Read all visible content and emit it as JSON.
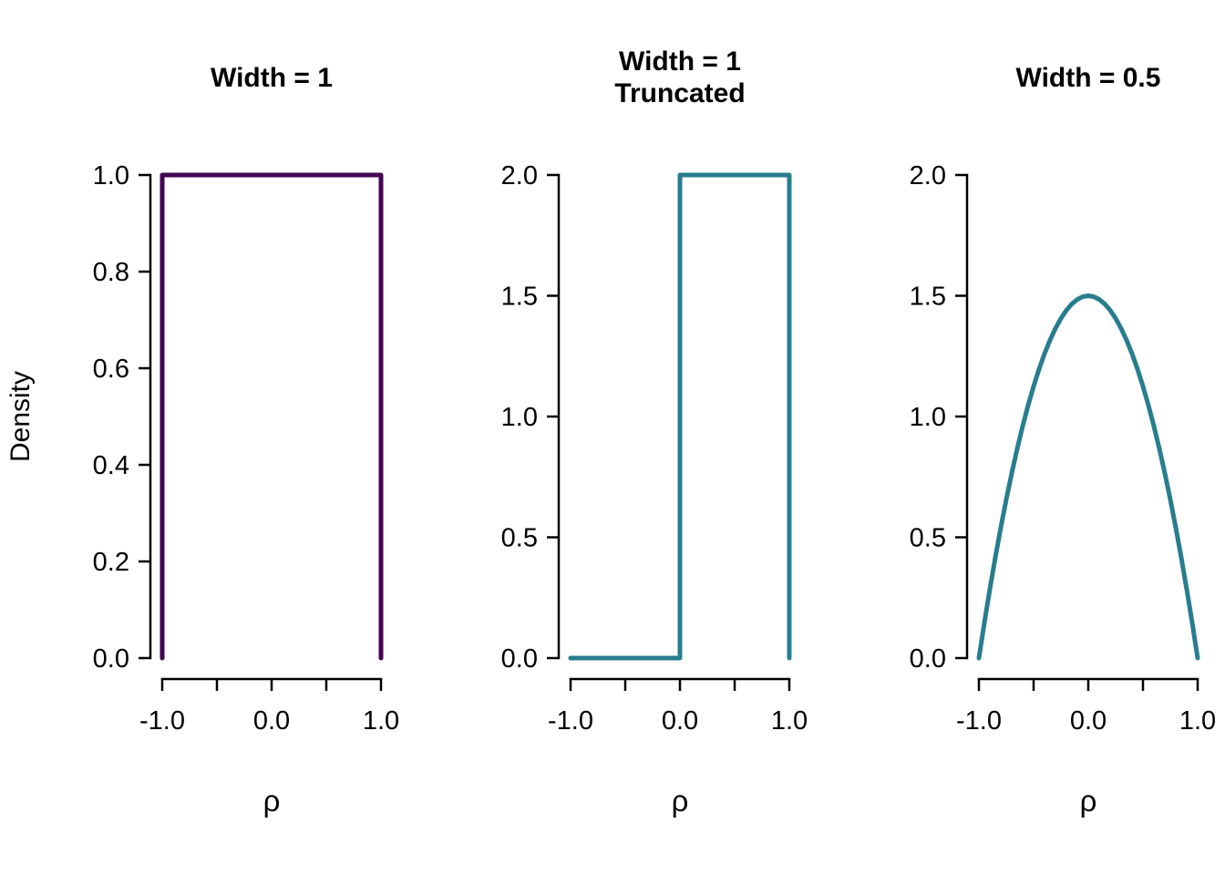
{
  "page": {
    "background": "#ffffff",
    "text_color": "#000000"
  },
  "chart_data": [
    {
      "type": "line",
      "name": "uniform-width-1",
      "title_lines": [
        "Width = 1"
      ],
      "xlabel": "ρ",
      "ylabel": "Density",
      "line_color": "#440154",
      "xlim": [
        -1,
        1
      ],
      "ylim": [
        0,
        1
      ],
      "grid": false,
      "legend": "none",
      "xticks": [
        {
          "value": -1.0,
          "label": "-1.0"
        },
        {
          "value": -0.5,
          "label": ""
        },
        {
          "value": 0.0,
          "label": "0.0"
        },
        {
          "value": 0.5,
          "label": ""
        },
        {
          "value": 1.0,
          "label": "1.0"
        }
      ],
      "yticks": [
        {
          "value": 0.0,
          "label": "0.0"
        },
        {
          "value": 0.2,
          "label": "0.2"
        },
        {
          "value": 0.4,
          "label": "0.4"
        },
        {
          "value": 0.6,
          "label": "0.6"
        },
        {
          "value": 0.8,
          "label": "0.8"
        },
        {
          "value": 1.0,
          "label": "1.0"
        }
      ],
      "points": [
        [
          -1,
          0
        ],
        [
          -1,
          1
        ],
        [
          1,
          1
        ],
        [
          1,
          0
        ]
      ]
    },
    {
      "type": "line",
      "name": "truncated-width-1",
      "title_lines": [
        "Width = 1",
        "Truncated"
      ],
      "xlabel": "ρ",
      "ylabel": "",
      "line_color": "#287d8e",
      "xlim": [
        -1,
        1
      ],
      "ylim": [
        0,
        2
      ],
      "grid": false,
      "legend": "none",
      "xticks": [
        {
          "value": -1.0,
          "label": "-1.0"
        },
        {
          "value": -0.5,
          "label": ""
        },
        {
          "value": 0.0,
          "label": "0.0"
        },
        {
          "value": 0.5,
          "label": ""
        },
        {
          "value": 1.0,
          "label": "1.0"
        }
      ],
      "yticks": [
        {
          "value": 0.0,
          "label": "0.0"
        },
        {
          "value": 0.5,
          "label": "0.5"
        },
        {
          "value": 1.0,
          "label": "1.0"
        },
        {
          "value": 1.5,
          "label": "1.5"
        },
        {
          "value": 2.0,
          "label": "2.0"
        }
      ],
      "points": [
        [
          -1,
          0
        ],
        [
          0,
          0
        ],
        [
          0,
          2
        ],
        [
          1,
          2
        ],
        [
          1,
          0
        ]
      ]
    },
    {
      "type": "line",
      "name": "width-0-5",
      "title_lines": [
        "Width = 0.5"
      ],
      "xlabel": "ρ",
      "ylabel": "",
      "line_color": "#287d8e",
      "xlim": [
        -1,
        1
      ],
      "ylim": [
        0,
        2
      ],
      "grid": false,
      "legend": "none",
      "xticks": [
        {
          "value": -1.0,
          "label": "-1.0"
        },
        {
          "value": -0.5,
          "label": ""
        },
        {
          "value": 0.0,
          "label": "0.0"
        },
        {
          "value": 0.5,
          "label": ""
        },
        {
          "value": 1.0,
          "label": "1.0"
        }
      ],
      "yticks": [
        {
          "value": 0.0,
          "label": "0.0"
        },
        {
          "value": 0.5,
          "label": "0.5"
        },
        {
          "value": 1.0,
          "label": "1.0"
        },
        {
          "value": 1.5,
          "label": "1.5"
        },
        {
          "value": 2.0,
          "label": "2.0"
        }
      ],
      "points": [
        [
          -1.0,
          0.0
        ],
        [
          -0.95,
          0.1463
        ],
        [
          -0.9,
          0.285
        ],
        [
          -0.85,
          0.4163
        ],
        [
          -0.8,
          0.54
        ],
        [
          -0.75,
          0.6563
        ],
        [
          -0.7,
          0.765
        ],
        [
          -0.65,
          0.8663
        ],
        [
          -0.6,
          0.96
        ],
        [
          -0.55,
          1.0463
        ],
        [
          -0.5,
          1.125
        ],
        [
          -0.45,
          1.1963
        ],
        [
          -0.4,
          1.26
        ],
        [
          -0.35,
          1.3163
        ],
        [
          -0.3,
          1.365
        ],
        [
          -0.25,
          1.4063
        ],
        [
          -0.2,
          1.44
        ],
        [
          -0.15,
          1.4663
        ],
        [
          -0.1,
          1.485
        ],
        [
          -0.05,
          1.4963
        ],
        [
          0.0,
          1.5
        ],
        [
          0.05,
          1.4963
        ],
        [
          0.1,
          1.485
        ],
        [
          0.15,
          1.4663
        ],
        [
          0.2,
          1.44
        ],
        [
          0.25,
          1.4063
        ],
        [
          0.3,
          1.365
        ],
        [
          0.35,
          1.3163
        ],
        [
          0.4,
          1.26
        ],
        [
          0.45,
          1.1963
        ],
        [
          0.5,
          1.125
        ],
        [
          0.55,
          1.0463
        ],
        [
          0.6,
          0.96
        ],
        [
          0.65,
          0.8663
        ],
        [
          0.7,
          0.765
        ],
        [
          0.75,
          0.6563
        ],
        [
          0.8,
          0.54
        ],
        [
          0.85,
          0.4163
        ],
        [
          0.9,
          0.285
        ],
        [
          0.95,
          0.1463
        ],
        [
          1.0,
          0.0
        ]
      ]
    }
  ]
}
